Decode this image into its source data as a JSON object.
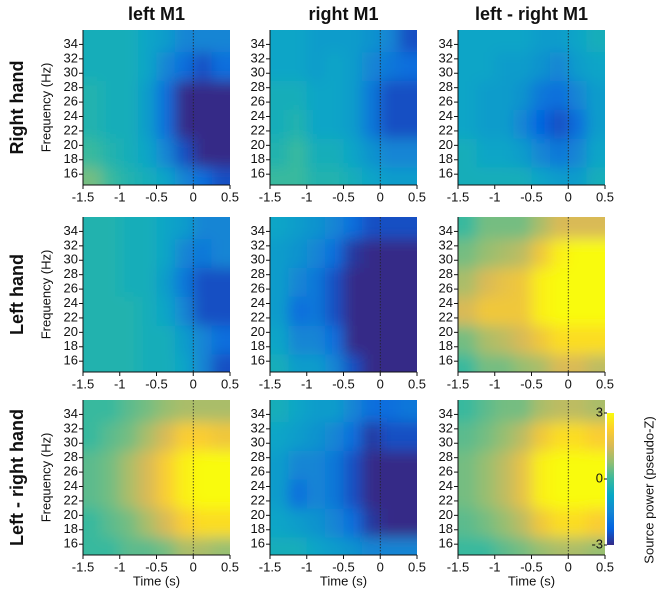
{
  "column_titles": [
    "left M1",
    "right M1",
    "left - right M1"
  ],
  "row_titles": [
    "Right hand",
    "Left hand",
    "Left - right hand"
  ],
  "colorbar": {
    "label": "Source power (pseudo-Z)",
    "zlim": [
      -3,
      3
    ],
    "ticks": [
      -3,
      0,
      3
    ],
    "colors": [
      "#352a87",
      "#0363e1",
      "#1485d4",
      "#06a7c6",
      "#38b99e",
      "#92bf73",
      "#d9ba56",
      "#fcce2e",
      "#f9fb0e"
    ]
  },
  "chart_data": [
    {
      "type": "heatmap",
      "ylabel": "Frequency (Hz)",
      "x": [
        -1.375,
        -1.125,
        -0.875,
        -0.625,
        -0.375,
        -0.125,
        0.125,
        0.375
      ],
      "y": [
        15,
        19,
        23,
        27,
        31,
        35
      ],
      "xlim": [
        -1.5,
        0.5
      ],
      "ylim": [
        14.5,
        36
      ],
      "xticks": [
        -1.5,
        -1,
        -0.5,
        0,
        0.5
      ],
      "yticks": [
        16,
        18,
        20,
        22,
        24,
        26,
        28,
        30,
        32,
        34
      ],
      "vline": 0,
      "z": [
        [
          0.5,
          0,
          -0.3,
          -0.5,
          -0.8,
          -1.5,
          -2,
          -2.5
        ],
        [
          0,
          -0.3,
          -0.5,
          -0.8,
          -1.5,
          -2.5,
          -3,
          -3
        ],
        [
          -0.3,
          -0.5,
          -0.5,
          -1,
          -2,
          -3,
          -3,
          -3
        ],
        [
          -0.3,
          -0.5,
          -0.5,
          -1,
          -2,
          -3,
          -3,
          -3
        ],
        [
          -0.5,
          -0.5,
          -0.5,
          -0.8,
          -1.5,
          -2,
          -2.5,
          -2
        ],
        [
          -0.5,
          -0.5,
          -0.5,
          -0.8,
          -1,
          -1.5,
          -1.5,
          -1.5
        ]
      ]
    },
    {
      "type": "heatmap",
      "x": [
        -1.375,
        -1.125,
        -0.875,
        -0.625,
        -0.375,
        -0.125,
        0.125,
        0.375
      ],
      "y": [
        15,
        19,
        23,
        27,
        31,
        35
      ],
      "xlim": [
        -1.5,
        0.5
      ],
      "ylim": [
        14.5,
        36
      ],
      "xticks": [
        -1.5,
        -1,
        -0.5,
        0,
        0.5
      ],
      "yticks": [
        16,
        18,
        20,
        22,
        24,
        26,
        28,
        30,
        32,
        34
      ],
      "vline": 0,
      "z": [
        [
          0,
          0,
          -0.3,
          -0.3,
          -0.5,
          -0.8,
          -1,
          -1
        ],
        [
          -0.3,
          0,
          -0.5,
          -0.5,
          -0.8,
          -1.2,
          -1.5,
          -1.5
        ],
        [
          -0.5,
          -0.3,
          -0.8,
          -0.8,
          -1,
          -1.8,
          -2.5,
          -2.5
        ],
        [
          -0.5,
          -0.5,
          -0.8,
          -0.8,
          -1,
          -1.8,
          -2.5,
          -2.5
        ],
        [
          -0.8,
          -0.8,
          -1,
          -0.8,
          -1,
          -1.5,
          -1.8,
          -2
        ],
        [
          -0.8,
          -0.8,
          -1,
          -1,
          -1,
          -1.2,
          -1.5,
          -2.5
        ]
      ]
    },
    {
      "type": "heatmap",
      "x": [
        -1.375,
        -1.125,
        -0.875,
        -0.625,
        -0.375,
        -0.125,
        0.125,
        0.375
      ],
      "y": [
        15,
        19,
        23,
        27,
        31,
        35
      ],
      "xlim": [
        -1.5,
        0.5
      ],
      "ylim": [
        14.5,
        36
      ],
      "xticks": [
        -1.5,
        -1,
        -0.5,
        0,
        0.5
      ],
      "yticks": [
        16,
        18,
        20,
        22,
        24,
        26,
        28,
        30,
        32,
        34
      ],
      "vline": 0,
      "z": [
        [
          -0.5,
          -0.5,
          -0.5,
          -0.5,
          -0.8,
          -1,
          -1,
          -0.5
        ],
        [
          -0.5,
          -0.8,
          -0.8,
          -1,
          -1.5,
          -1.8,
          -1.5,
          -0.8
        ],
        [
          -0.8,
          -1,
          -1,
          -1.5,
          -2.2,
          -2.5,
          -2,
          -1
        ],
        [
          -0.8,
          -1,
          -1,
          -1.2,
          -1.8,
          -2,
          -1.5,
          -1
        ],
        [
          -0.8,
          -0.8,
          -1,
          -1,
          -1.2,
          -1.5,
          -1,
          -0.8
        ],
        [
          -0.8,
          -0.8,
          -0.8,
          -0.8,
          -1,
          -1,
          -0.8,
          -0.5
        ]
      ]
    },
    {
      "type": "heatmap",
      "ylabel": "Frequency (Hz)",
      "x": [
        -1.375,
        -1.125,
        -0.875,
        -0.625,
        -0.375,
        -0.125,
        0.125,
        0.375
      ],
      "y": [
        15,
        19,
        23,
        27,
        31,
        35
      ],
      "xlim": [
        -1.5,
        0.5
      ],
      "ylim": [
        14.5,
        36
      ],
      "xticks": [
        -1.5,
        -1,
        -0.5,
        0,
        0.5
      ],
      "yticks": [
        16,
        18,
        20,
        22,
        24,
        26,
        28,
        30,
        32,
        34
      ],
      "vline": 0,
      "z": [
        [
          -0.3,
          -0.3,
          -0.3,
          -0.5,
          -0.5,
          -0.8,
          -1.5,
          -2.5
        ],
        [
          -0.3,
          -0.3,
          -0.3,
          -0.5,
          -0.5,
          -1,
          -1.5,
          -2
        ],
        [
          -0.3,
          -0.3,
          -0.3,
          -0.5,
          -0.8,
          -1.5,
          -2.5,
          -2.5
        ],
        [
          -0.3,
          -0.3,
          -0.5,
          -0.5,
          -1,
          -1.8,
          -2.5,
          -2.5
        ],
        [
          -0.3,
          -0.3,
          -0.5,
          -0.5,
          -0.8,
          -1.5,
          -1.8,
          -1.5
        ],
        [
          -0.3,
          -0.3,
          -0.5,
          -0.5,
          -0.8,
          -1,
          -1.5,
          -1.5
        ]
      ]
    },
    {
      "type": "heatmap",
      "x": [
        -1.375,
        -1.125,
        -0.875,
        -0.625,
        -0.375,
        -0.125,
        0.125,
        0.375
      ],
      "y": [
        15,
        19,
        23,
        27,
        31,
        35
      ],
      "xlim": [
        -1.5,
        0.5
      ],
      "ylim": [
        14.5,
        36
      ],
      "xticks": [
        -1.5,
        -1,
        -0.5,
        0,
        0.5
      ],
      "yticks": [
        16,
        18,
        20,
        22,
        24,
        26,
        28,
        30,
        32,
        34
      ],
      "vline": 0,
      "z": [
        [
          -0.5,
          -1,
          -1,
          -1.5,
          -2.5,
          -3,
          -3,
          -3
        ],
        [
          -0.8,
          -1.5,
          -1.5,
          -2,
          -3,
          -3,
          -3,
          -3
        ],
        [
          -1,
          -2,
          -1.8,
          -2.5,
          -3,
          -3,
          -3,
          -3
        ],
        [
          -1,
          -1.5,
          -1.8,
          -2.5,
          -3,
          -3,
          -3,
          -3
        ],
        [
          -1,
          -1.2,
          -1.5,
          -2,
          -2.8,
          -3,
          -3,
          -3
        ],
        [
          -0.8,
          -1,
          -1.2,
          -1.5,
          -2,
          -2.5,
          -2.5,
          -2.5
        ]
      ]
    },
    {
      "type": "heatmap",
      "x": [
        -1.375,
        -1.125,
        -0.875,
        -0.625,
        -0.375,
        -0.125,
        0.125,
        0.375
      ],
      "y": [
        15,
        19,
        23,
        27,
        31,
        35
      ],
      "xlim": [
        -1.5,
        0.5
      ],
      "ylim": [
        14.5,
        36
      ],
      "xticks": [
        -1.5,
        -1,
        -0.5,
        0,
        0.5
      ],
      "yticks": [
        16,
        18,
        20,
        22,
        24,
        26,
        28,
        30,
        32,
        34
      ],
      "vline": 0,
      "z": [
        [
          0,
          0.5,
          0.5,
          0.8,
          1,
          1.5,
          1.5,
          1.2
        ],
        [
          0.5,
          1,
          1.2,
          1.5,
          2,
          2.5,
          2.5,
          2.5
        ],
        [
          1.5,
          2,
          2,
          2,
          2.8,
          3,
          3,
          3
        ],
        [
          1,
          1.5,
          1.8,
          2,
          2.8,
          3,
          3,
          3
        ],
        [
          0.5,
          0.8,
          1,
          1.2,
          2,
          2.8,
          3,
          3
        ],
        [
          0,
          0.5,
          0.5,
          0.5,
          1,
          1.5,
          1.5,
          1.5
        ]
      ]
    },
    {
      "type": "heatmap",
      "ylabel": "Frequency (Hz)",
      "xlabel": "Time (s)",
      "x": [
        -1.375,
        -1.125,
        -0.875,
        -0.625,
        -0.375,
        -0.125,
        0.125,
        0.375
      ],
      "y": [
        15,
        19,
        23,
        27,
        31,
        35
      ],
      "xlim": [
        -1.5,
        0.5
      ],
      "ylim": [
        14.5,
        36
      ],
      "xticks": [
        -1.5,
        -1,
        -0.5,
        0,
        0.5
      ],
      "yticks": [
        16,
        18,
        20,
        22,
        24,
        26,
        28,
        30,
        32,
        34
      ],
      "vline": 0,
      "z": [
        [
          0,
          0,
          0.3,
          0.3,
          0.5,
          1,
          1,
          0.8
        ],
        [
          0,
          0.3,
          0.5,
          1,
          1.5,
          2.2,
          2.5,
          2.5
        ],
        [
          0.3,
          0.5,
          1,
          1.5,
          2.2,
          2.8,
          3,
          3
        ],
        [
          0.3,
          0.5,
          1,
          1.5,
          2.2,
          2.8,
          3,
          3
        ],
        [
          0,
          0.3,
          0.5,
          1,
          1.5,
          2.2,
          2.2,
          2
        ],
        [
          0,
          0,
          0.3,
          0.5,
          0.8,
          1,
          1,
          1
        ]
      ]
    },
    {
      "type": "heatmap",
      "xlabel": "Time (s)",
      "x": [
        -1.375,
        -1.125,
        -0.875,
        -0.625,
        -0.375,
        -0.125,
        0.125,
        0.375
      ],
      "y": [
        15,
        19,
        23,
        27,
        31,
        35
      ],
      "xlim": [
        -1.5,
        0.5
      ],
      "ylim": [
        14.5,
        36
      ],
      "xticks": [
        -1.5,
        -1,
        -0.5,
        0,
        0.5
      ],
      "yticks": [
        16,
        18,
        20,
        22,
        24,
        26,
        28,
        30,
        32,
        34
      ],
      "vline": 0,
      "z": [
        [
          -0.5,
          -0.5,
          -0.8,
          -1,
          -1.2,
          -1.5,
          -1.5,
          -1.5
        ],
        [
          -0.8,
          -1,
          -1.2,
          -1.5,
          -2,
          -2.8,
          -3,
          -3
        ],
        [
          -1,
          -2,
          -1.5,
          -1.8,
          -2.5,
          -3,
          -3,
          -3
        ],
        [
          -1,
          -1.5,
          -1.5,
          -1.8,
          -2.5,
          -3,
          -3,
          -3
        ],
        [
          -0.8,
          -1,
          -1.2,
          -1.5,
          -2,
          -2.8,
          -2.5,
          -2.5
        ],
        [
          -0.5,
          -0.8,
          -1,
          -1,
          -1.5,
          -2,
          -2,
          -1.8
        ]
      ]
    },
    {
      "type": "heatmap",
      "xlabel": "Time (s)",
      "x": [
        -1.375,
        -1.125,
        -0.875,
        -0.625,
        -0.375,
        -0.125,
        0.125,
        0.375
      ],
      "y": [
        15,
        19,
        23,
        27,
        31,
        35
      ],
      "xlim": [
        -1.5,
        0.5
      ],
      "ylim": [
        14.5,
        36
      ],
      "xticks": [
        -1.5,
        -1,
        -0.5,
        0,
        0.5
      ],
      "yticks": [
        16,
        18,
        20,
        22,
        24,
        26,
        28,
        30,
        32,
        34
      ],
      "vline": 0,
      "z": [
        [
          0,
          0,
          0.3,
          0.5,
          0.8,
          1,
          1,
          0.8
        ],
        [
          0.3,
          0.5,
          0.8,
          1.2,
          2,
          2.5,
          2.5,
          2.2
        ],
        [
          0.5,
          0.8,
          1.2,
          1.8,
          2.8,
          3,
          3,
          3
        ],
        [
          0.5,
          0.8,
          1.2,
          1.8,
          2.8,
          3,
          3,
          3
        ],
        [
          0.3,
          0.5,
          0.8,
          1.2,
          2,
          2.5,
          2.5,
          2.2
        ],
        [
          0,
          0.3,
          0.5,
          0.5,
          1,
          1.2,
          1.2,
          1
        ]
      ]
    }
  ]
}
